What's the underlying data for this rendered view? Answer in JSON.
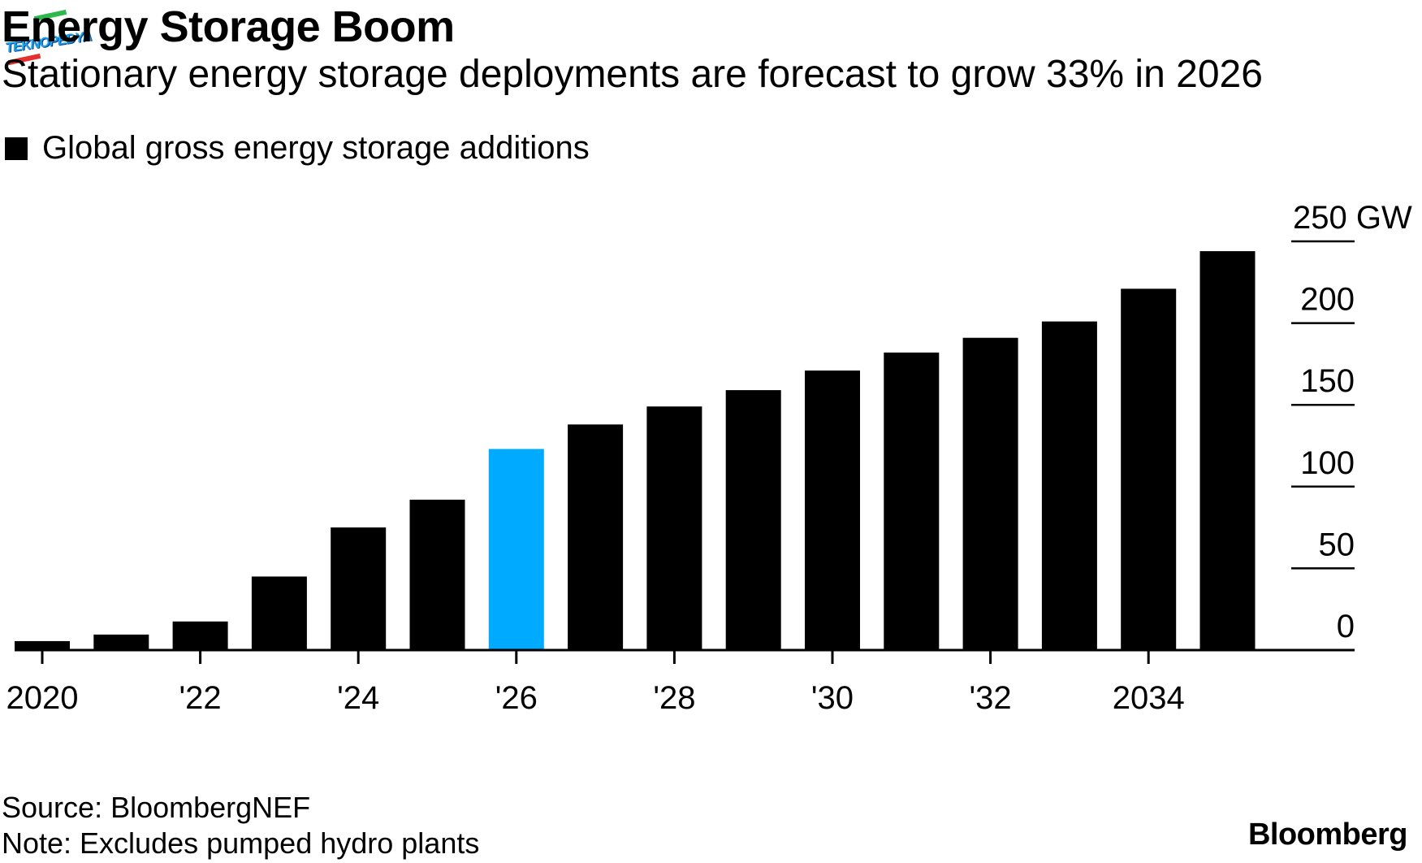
{
  "header": {
    "title": "Energy Storage Boom",
    "subtitle": "Stationary energy storage deployments are forecast to grow 33% in 2026",
    "watermark": "TEKNOPEDYA"
  },
  "footer": {
    "source": "Source: BloombergNEF",
    "note": "Note: Excludes pumped hydro plants",
    "brand": "Bloomberg"
  },
  "chart_data": {
    "type": "bar",
    "title": "Energy Storage Boom",
    "subtitle": "Stationary energy storage deployments are forecast to grow 33% in 2026",
    "legend": [
      {
        "label": "Global gross energy storage additions",
        "color": "#000000"
      }
    ],
    "legend_position": "top-left",
    "categories": [
      "2020",
      "2021",
      "2022",
      "2023",
      "2024",
      "2025",
      "2026",
      "2027",
      "2028",
      "2029",
      "2030",
      "2031",
      "2032",
      "2033",
      "2034",
      "2035"
    ],
    "x_tick_labels": [
      {
        "category": "2020",
        "label": "2020"
      },
      {
        "category": "2022",
        "label": "'22"
      },
      {
        "category": "2024",
        "label": "'24"
      },
      {
        "category": "2026",
        "label": "'26"
      },
      {
        "category": "2028",
        "label": "'28"
      },
      {
        "category": "2030",
        "label": "'30"
      },
      {
        "category": "2032",
        "label": "'32"
      },
      {
        "category": "2034",
        "label": "2034"
      }
    ],
    "series": [
      {
        "name": "Global gross energy storage additions",
        "values": [
          5.5,
          9.5,
          17.5,
          45,
          75,
          92,
          123,
          138,
          149,
          159,
          171,
          182,
          191,
          201,
          221,
          244
        ]
      }
    ],
    "highlight": {
      "category": "2026",
      "color": "#00aaff"
    },
    "bar_color": "#000000",
    "xlabel": "",
    "ylabel": "GW",
    "ylim": [
      0,
      250
    ],
    "y_ticks": [
      {
        "value": 0,
        "label": "0"
      },
      {
        "value": 50,
        "label": "50"
      },
      {
        "value": 100,
        "label": "100"
      },
      {
        "value": 150,
        "label": "150"
      },
      {
        "value": 200,
        "label": "200"
      },
      {
        "value": 250,
        "label": "250 GW"
      }
    ],
    "y_axis_side": "right",
    "grid": false
  }
}
